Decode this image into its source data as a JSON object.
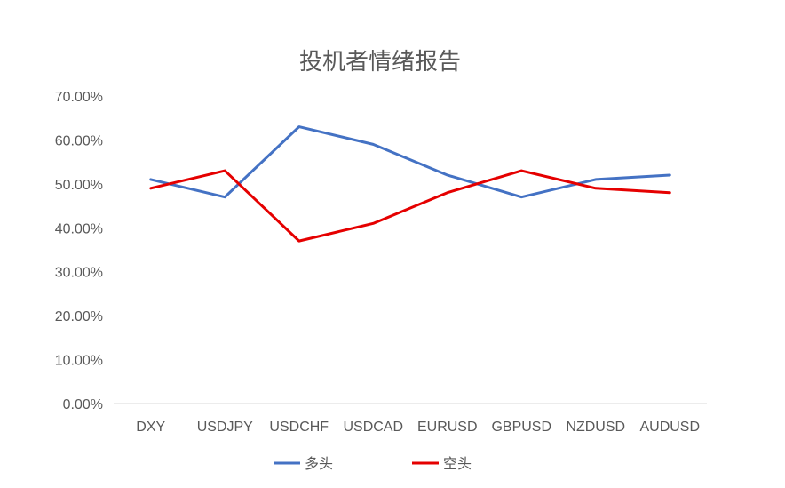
{
  "chart_data": {
    "type": "line",
    "title": "投机者情绪报告",
    "categories": [
      "DXY",
      "USDJPY",
      "USDCHF",
      "USDCAD",
      "EURUSD",
      "GBPUSD",
      "NZDUSD",
      "AUDUSD"
    ],
    "y_ticks": [
      "0.00%",
      "10.00%",
      "20.00%",
      "30.00%",
      "40.00%",
      "50.00%",
      "60.00%",
      "70.00%"
    ],
    "ylim": [
      0,
      70
    ],
    "y_unit": "%",
    "grid": false,
    "legend_position": "bottom",
    "series": [
      {
        "name": "多头",
        "color": "#4472C4",
        "values": [
          51,
          47,
          63,
          59,
          52,
          47,
          51,
          52
        ]
      },
      {
        "name": "空头",
        "color": "#E50000",
        "values": [
          49,
          53,
          37,
          41,
          48,
          53,
          49,
          48
        ]
      }
    ]
  }
}
